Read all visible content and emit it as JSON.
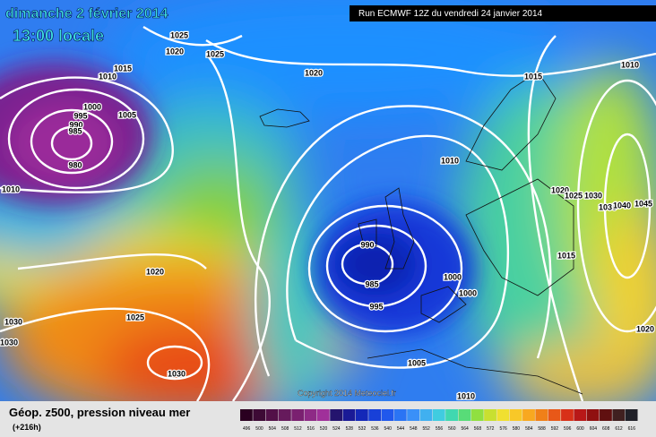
{
  "header": {
    "date": "dimanche 2 février 2014",
    "time": "13:00 locale",
    "run": "Run ECMWF 12Z du vendredi 24 janvier 2014"
  },
  "isobar_labels": [
    "1025",
    "1020",
    "1025",
    "1015",
    "1010",
    "1020",
    "1015",
    "1010",
    "1000",
    "995",
    "1005",
    "990",
    "985",
    "980",
    "1010",
    "1010",
    "1020",
    "1025",
    "1030",
    "1035",
    "1040",
    "1045",
    "990",
    "985",
    "995",
    "1000",
    "1000",
    "1015",
    "1020",
    "1025",
    "1030",
    "1030",
    "1030",
    "1005",
    "1010",
    "1020"
  ],
  "copyright": "Copyright 2014 Meteociel.fr",
  "legend": {
    "title": "Géop. z500, pression niveau mer",
    "lead": "(+216h)",
    "scale": [
      "496",
      "500",
      "504",
      "508",
      "512",
      "516",
      "520",
      "524",
      "528",
      "532",
      "536",
      "540",
      "544",
      "548",
      "552",
      "556",
      "560",
      "564",
      "568",
      "572",
      "576",
      "580",
      "584",
      "588",
      "592",
      "596",
      "600",
      "604",
      "608",
      "612",
      "616"
    ]
  }
}
